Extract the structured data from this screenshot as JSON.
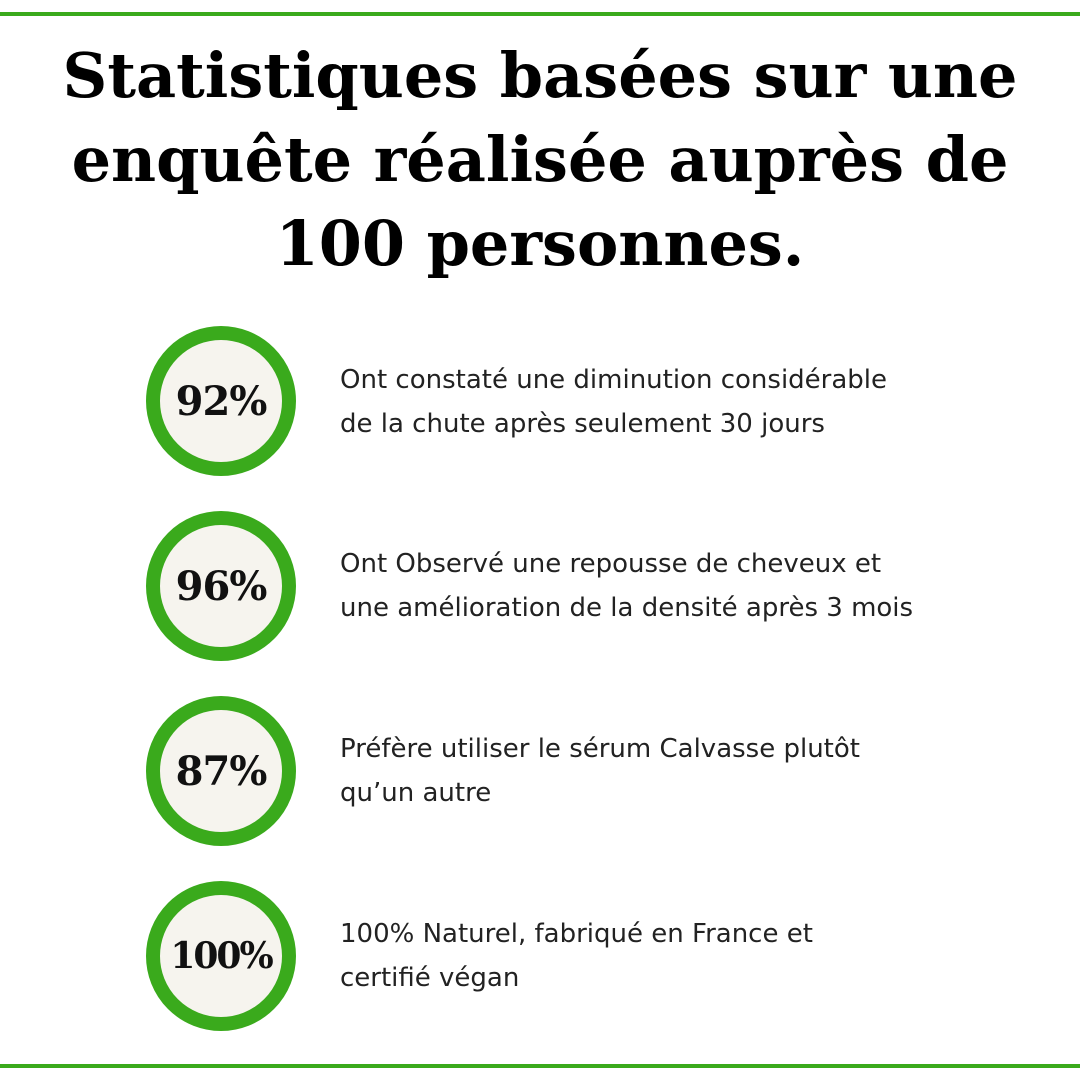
{
  "colors": {
    "accent": "#3aaa1c",
    "circle_fill": "#f6f4ee",
    "text": "#111111"
  },
  "title": {
    "line1": "Statistiques basées sur une",
    "line2": "enquête réalisée auprès de",
    "line3": "100 personnes."
  },
  "stats": [
    {
      "value": "92%",
      "line1": "Ont constaté une diminution considérable",
      "line2": "de la chute après seulement 30 jours"
    },
    {
      "value": "96%",
      "line1": "Ont Observé une repousse de cheveux et",
      "line2": "une amélioration de la densité après 3 mois"
    },
    {
      "value": "87%",
      "line1": "Préfère utiliser le sérum Calvasse plutôt",
      "line2": "qu’un autre"
    },
    {
      "value": "100%",
      "line1": "100% Naturel, fabriqué en France et",
      "line2": "certifié végan"
    }
  ]
}
